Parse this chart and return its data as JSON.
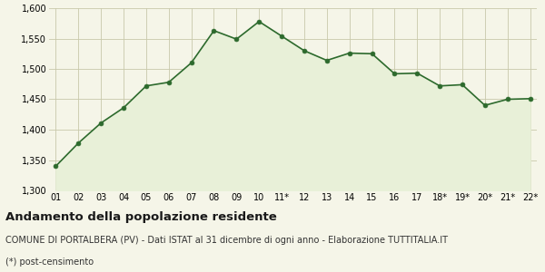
{
  "x_labels": [
    "01",
    "02",
    "03",
    "04",
    "05",
    "06",
    "07",
    "08",
    "09",
    "10",
    "11*",
    "12",
    "13",
    "14",
    "15",
    "16",
    "17",
    "18*",
    "19*",
    "20*",
    "21*",
    "22*"
  ],
  "y_values": [
    1340,
    1378,
    1411,
    1436,
    1472,
    1478,
    1510,
    1563,
    1549,
    1578,
    1554,
    1530,
    1514,
    1526,
    1525,
    1492,
    1493,
    1472,
    1474,
    1440,
    1450,
    1451
  ],
  "ylim": [
    1300,
    1600
  ],
  "yticks": [
    1300,
    1350,
    1400,
    1450,
    1500,
    1550,
    1600
  ],
  "line_color": "#2d6a2d",
  "fill_color": "#e8f0d8",
  "marker_color": "#2d6a2d",
  "bg_color": "#f5f5e8",
  "grid_color": "#c8c8aa",
  "title": "Andamento della popolazione residente",
  "subtitle": "COMUNE DI PORTALBERA (PV) - Dati ISTAT al 31 dicembre di ogni anno - Elaborazione TUTTITALIA.IT",
  "footnote": "(*) post-censimento",
  "title_fontsize": 9.5,
  "subtitle_fontsize": 7,
  "footnote_fontsize": 7,
  "tick_fontsize": 7
}
